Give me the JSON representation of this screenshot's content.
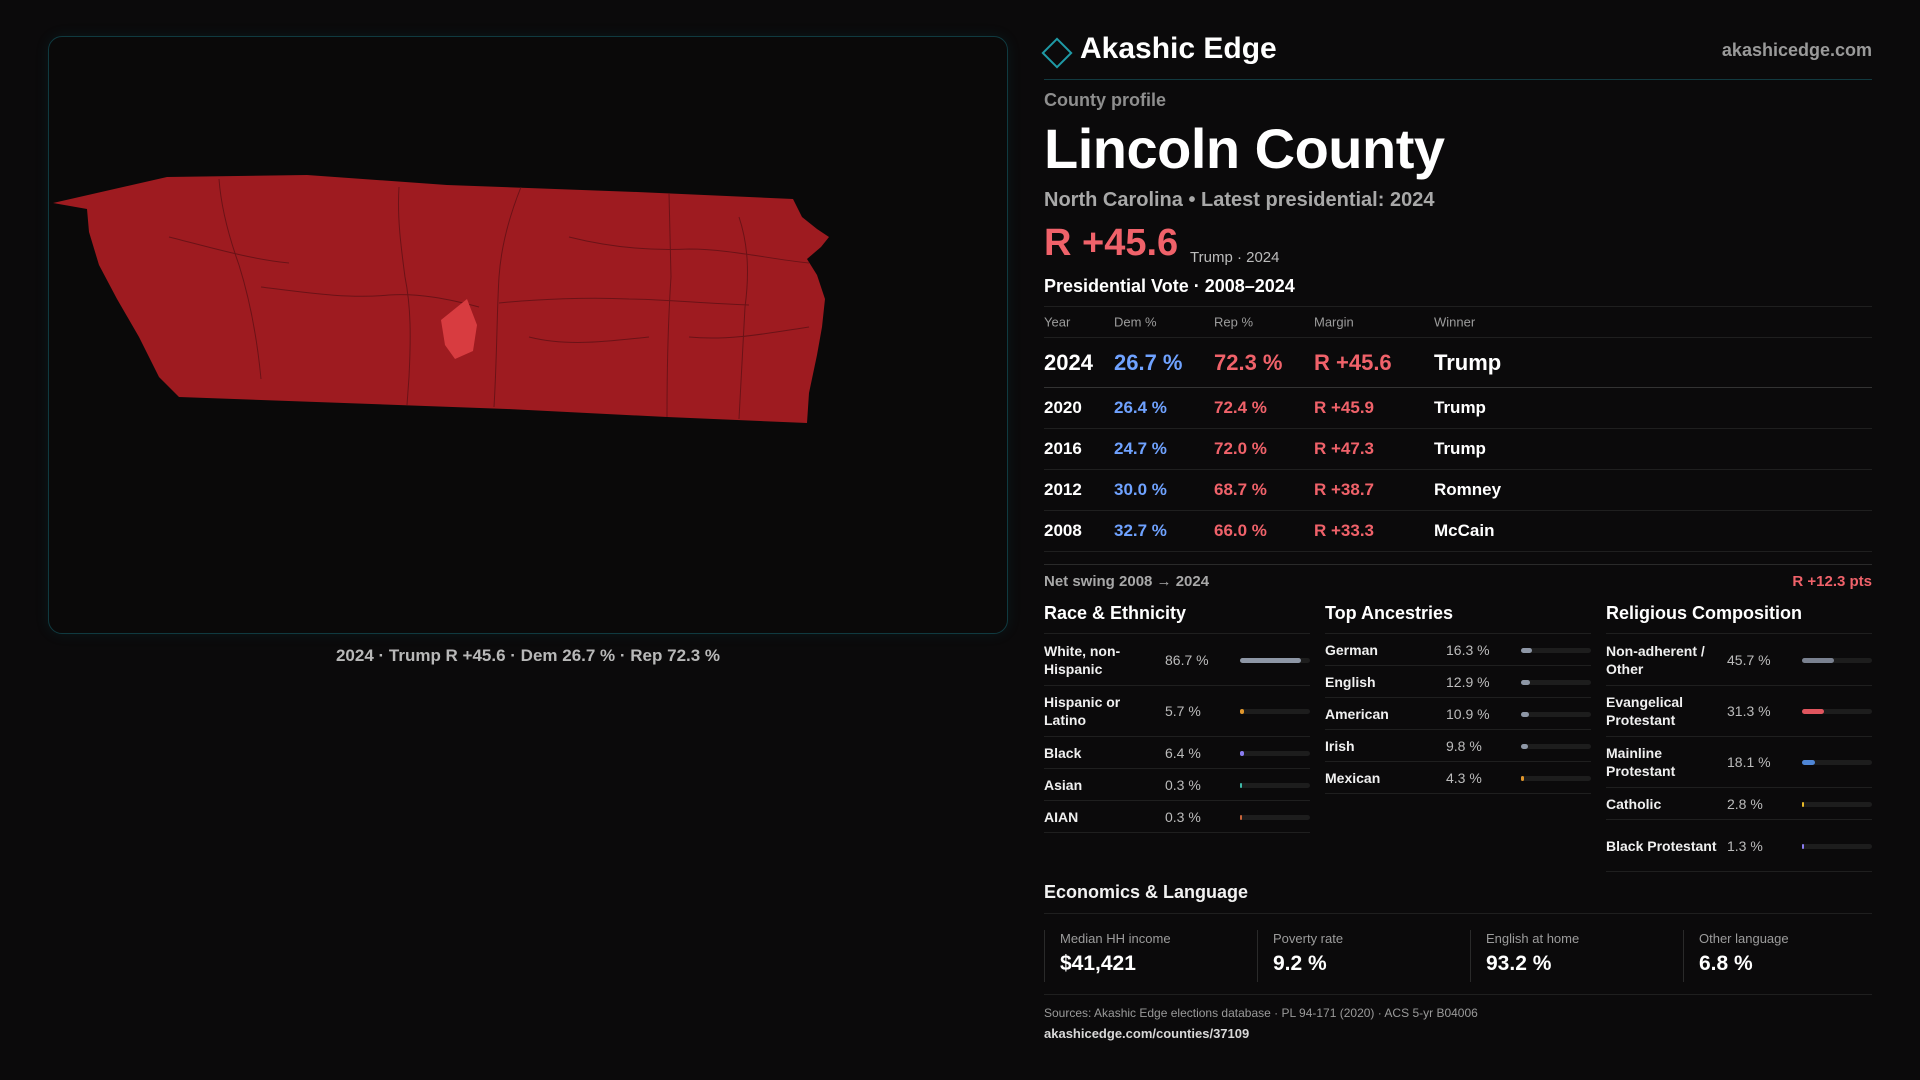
{
  "brand": {
    "name": "Akashic Edge",
    "url": "akashicedge.com",
    "logo_icon": "diamond-outline-icon",
    "accent": "#1f9aa6"
  },
  "profile": {
    "eyebrow": "County profile",
    "county": "Lincoln County",
    "subline": "North Carolina • Latest presidential: 2024",
    "margin": "R +45.6",
    "margin_note": "Trump · 2024"
  },
  "map": {
    "caption": "2024 · Trump R +45.6 · Dem 26.7 % · Rep 72.3 %",
    "fill_color": "#9e1b20",
    "highlight_color": "#d83c40"
  },
  "results": {
    "title": "Presidential Vote · 2008–2024",
    "headers": {
      "year": "Year",
      "dem": "Dem %",
      "rep": "Rep %",
      "margin": "Margin",
      "winner": "Winner"
    },
    "rows": [
      {
        "year": "2024",
        "dem": "26.7 %",
        "rep": "72.3 %",
        "margin": "R +45.6",
        "winner": "Trump"
      },
      {
        "year": "2020",
        "dem": "26.4 %",
        "rep": "72.4 %",
        "margin": "R +45.9",
        "winner": "Trump"
      },
      {
        "year": "2016",
        "dem": "24.7 %",
        "rep": "72.0 %",
        "margin": "R +47.3",
        "winner": "Trump"
      },
      {
        "year": "2012",
        "dem": "30.0 %",
        "rep": "68.7 %",
        "margin": "R +38.7",
        "winner": "Romney"
      },
      {
        "year": "2008",
        "dem": "32.7 %",
        "rep": "66.0 %",
        "margin": "R +33.3",
        "winner": "McCain"
      }
    ],
    "colors": {
      "dem": "#6fa2ff",
      "rep": "#f0626a"
    }
  },
  "swing": {
    "label": "Net swing 2008 → 2024",
    "value": "R +12.3 pts"
  },
  "race": {
    "title": "Race & Ethnicity",
    "items": [
      {
        "label": "White, non-Hispanic",
        "pct": "86.7 %",
        "share": 0.867,
        "color": "#8e97a6"
      },
      {
        "label": "Hispanic or Latino",
        "pct": "5.7 %",
        "share": 0.057,
        "color": "#e0962c"
      },
      {
        "label": "Black",
        "pct": "6.4 %",
        "share": 0.064,
        "color": "#8a7cf0"
      },
      {
        "label": "Asian",
        "pct": "0.3 %",
        "share": 0.003,
        "color": "#3fb8a8"
      },
      {
        "label": "AIAN",
        "pct": "0.3 %",
        "share": 0.003,
        "color": "#c9643a"
      }
    ]
  },
  "ancestry": {
    "title": "Top Ancestries",
    "items": [
      {
        "label": "German",
        "pct": "16.3 %",
        "share": 0.163,
        "color": "#8e97a6"
      },
      {
        "label": "English",
        "pct": "12.9 %",
        "share": 0.129,
        "color": "#8e97a6"
      },
      {
        "label": "American",
        "pct": "10.9 %",
        "share": 0.109,
        "color": "#8e97a6"
      },
      {
        "label": "Irish",
        "pct": "9.8 %",
        "share": 0.098,
        "color": "#8e97a6"
      },
      {
        "label": "Mexican",
        "pct": "4.3 %",
        "share": 0.043,
        "color": "#e0962c"
      }
    ]
  },
  "religion": {
    "title": "Religious Composition",
    "items": [
      {
        "label": "Non-adherent / Other",
        "pct": "45.7 %",
        "share": 0.457,
        "color": "#7a8190"
      },
      {
        "label": "Evangelical Protestant",
        "pct": "31.3 %",
        "share": 0.313,
        "color": "#e0555e"
      },
      {
        "label": "Mainline Protestant",
        "pct": "18.1 %",
        "share": 0.181,
        "color": "#4f86d6"
      },
      {
        "label": "Catholic",
        "pct": "2.8 %",
        "share": 0.028,
        "color": "#e6b828"
      },
      {
        "label": "Black Protestant",
        "pct": "1.3 %",
        "share": 0.013,
        "color": "#8a7cf0"
      }
    ]
  },
  "economics": {
    "title": "Economics & Language",
    "stats": [
      {
        "label": "Median HH income",
        "value": "$41,421"
      },
      {
        "label": "Poverty rate",
        "value": "9.2 %"
      },
      {
        "label": "English at home",
        "value": "93.2 %"
      },
      {
        "label": "Other language",
        "value": "6.8 %"
      }
    ]
  },
  "footer": {
    "sources": "Sources: Akashic Edge elections database · PL 94-171 (2020) · ACS 5-yr B04006",
    "url": "akashicedge.com/counties/37109"
  }
}
